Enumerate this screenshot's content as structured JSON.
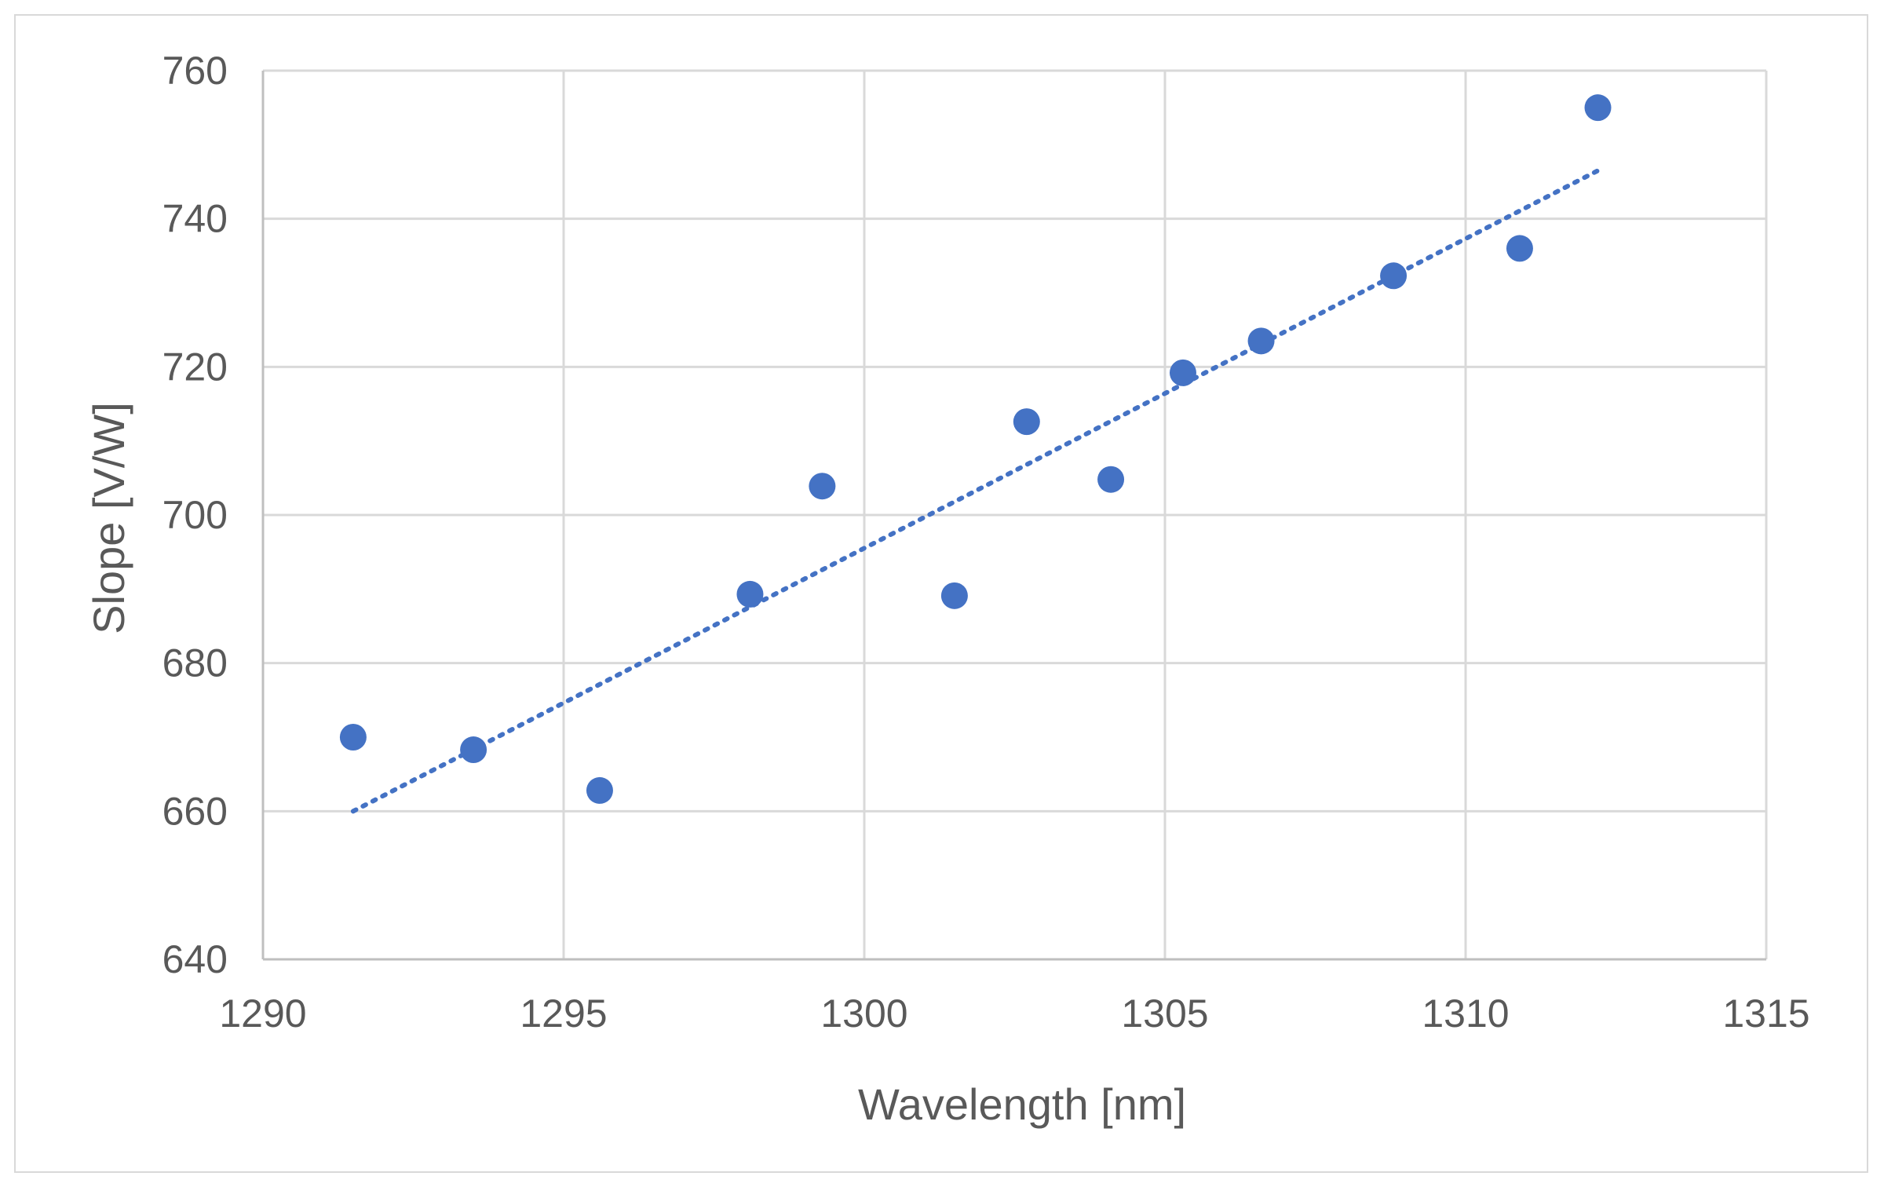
{
  "chart_data": {
    "type": "scatter",
    "title": "",
    "xlabel": "Wavelength [nm]",
    "ylabel": "Slope [V/W]",
    "xlim": [
      1290,
      1315
    ],
    "ylim": [
      640,
      760
    ],
    "xticks": [
      1290,
      1295,
      1300,
      1305,
      1310,
      1315
    ],
    "yticks": [
      640,
      660,
      680,
      700,
      720,
      740,
      760
    ],
    "xtick_labels": [
      "1290",
      "1295",
      "1300",
      "1305",
      "1310",
      "1315"
    ],
    "ytick_labels": [
      "640",
      "660",
      "680",
      "700",
      "720",
      "740",
      "760"
    ],
    "grid": true,
    "legend": "none",
    "series": [
      {
        "name": "Slope",
        "x": [
          1291.5,
          1293.5,
          1295.6,
          1298.1,
          1299.3,
          1301.5,
          1302.7,
          1304.1,
          1305.3,
          1306.6,
          1308.8,
          1310.9,
          1312.2
        ],
        "y": [
          670,
          668.3,
          662.8,
          689.3,
          703.9,
          689.1,
          712.6,
          704.8,
          719.2,
          723.5,
          732.3,
          736.0,
          755.0
        ],
        "color": "#4472c4"
      }
    ],
    "trendline": {
      "type": "linear",
      "style": "dotted",
      "color": "#4472c4",
      "x": [
        1291.5,
        1312.2
      ],
      "y": [
        660,
        746.5
      ]
    }
  }
}
